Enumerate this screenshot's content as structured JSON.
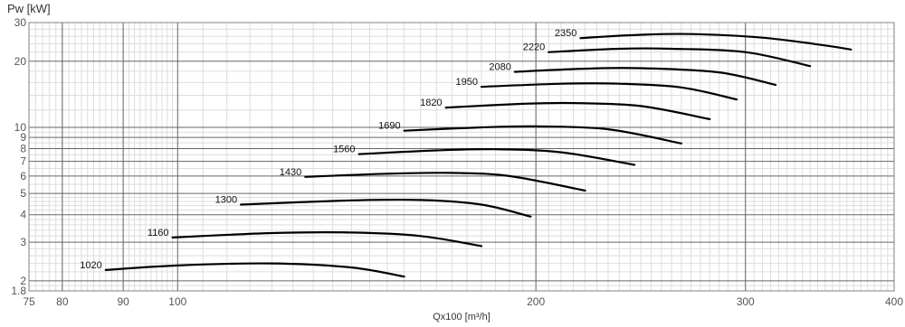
{
  "chart_data": {
    "type": "line",
    "title": "",
    "ylabel": "Pw [kW]",
    "xlabel": "Qx100 [m³/h]",
    "x_scale": "log",
    "y_scale": "log",
    "xlim": [
      75,
      400
    ],
    "ylim": [
      1.8,
      30
    ],
    "grid": true,
    "legend": "none",
    "line_color": "#000000",
    "x_ticks": [
      {
        "value": 75,
        "label": "75"
      },
      {
        "value": 80,
        "label": "80"
      },
      {
        "value": 90,
        "label": "90"
      },
      {
        "value": 100,
        "label": "100"
      },
      {
        "value": 200,
        "label": "200"
      },
      {
        "value": 300,
        "label": "300"
      },
      {
        "value": 400,
        "label": "400"
      }
    ],
    "y_ticks": [
      {
        "value": 1.8,
        "label": "1.8"
      },
      {
        "value": 2,
        "label": "2"
      },
      {
        "value": 3,
        "label": "3"
      },
      {
        "value": 4,
        "label": "4"
      },
      {
        "value": 5,
        "label": "5"
      },
      {
        "value": 6,
        "label": "6"
      },
      {
        "value": 7,
        "label": "7"
      },
      {
        "value": 8,
        "label": "8"
      },
      {
        "value": 9,
        "label": "9"
      },
      {
        "value": 10,
        "label": "10"
      },
      {
        "value": 20,
        "label": "20"
      },
      {
        "value": 30,
        "label": "30"
      }
    ],
    "series": [
      {
        "label": "1020",
        "points": [
          [
            87,
            2.24
          ],
          [
            100,
            2.35
          ],
          [
            120,
            2.4
          ],
          [
            140,
            2.3
          ],
          [
            155,
            2.09
          ]
        ]
      },
      {
        "label": "1160",
        "points": [
          [
            99,
            3.15
          ],
          [
            120,
            3.3
          ],
          [
            140,
            3.32
          ],
          [
            160,
            3.2
          ],
          [
            180,
            2.88
          ]
        ]
      },
      {
        "label": "1300",
        "points": [
          [
            113,
            4.45
          ],
          [
            140,
            4.65
          ],
          [
            160,
            4.67
          ],
          [
            180,
            4.45
          ],
          [
            198,
            3.92
          ]
        ]
      },
      {
        "label": "1430",
        "points": [
          [
            128,
            5.95
          ],
          [
            150,
            6.15
          ],
          [
            170,
            6.2
          ],
          [
            190,
            6.0
          ],
          [
            220,
            5.15
          ]
        ]
      },
      {
        "label": "1560",
        "points": [
          [
            142,
            7.55
          ],
          [
            165,
            7.85
          ],
          [
            185,
            7.95
          ],
          [
            210,
            7.7
          ],
          [
            242,
            6.75
          ]
        ]
      },
      {
        "label": "1690",
        "points": [
          [
            155,
            9.65
          ],
          [
            180,
            10.0
          ],
          [
            200,
            10.1
          ],
          [
            230,
            9.8
          ],
          [
            265,
            8.45
          ]
        ]
      },
      {
        "label": "1820",
        "points": [
          [
            168,
            12.3
          ],
          [
            195,
            12.8
          ],
          [
            215,
            12.9
          ],
          [
            245,
            12.5
          ],
          [
            280,
            10.9
          ]
        ]
      },
      {
        "label": "1950",
        "points": [
          [
            180,
            15.3
          ],
          [
            210,
            15.8
          ],
          [
            235,
            15.8
          ],
          [
            265,
            15.2
          ],
          [
            295,
            13.4
          ]
        ]
      },
      {
        "label": "2080",
        "points": [
          [
            192,
            17.9
          ],
          [
            220,
            18.5
          ],
          [
            245,
            18.6
          ],
          [
            285,
            17.8
          ],
          [
            318,
            15.6
          ]
        ]
      },
      {
        "label": "2220",
        "points": [
          [
            205,
            22.0
          ],
          [
            235,
            22.8
          ],
          [
            260,
            22.8
          ],
          [
            300,
            22.0
          ],
          [
            340,
            19.0
          ]
        ]
      },
      {
        "label": "2350",
        "points": [
          [
            218,
            25.5
          ],
          [
            245,
            26.4
          ],
          [
            270,
            26.6
          ],
          [
            310,
            25.6
          ],
          [
            350,
            23.6
          ],
          [
            368,
            22.6
          ]
        ]
      }
    ]
  }
}
